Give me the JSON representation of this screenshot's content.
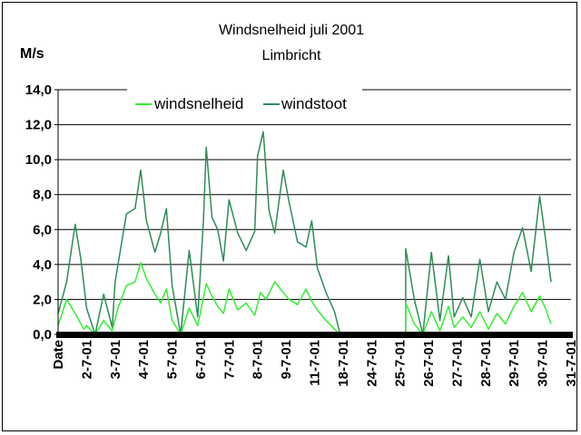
{
  "chart_data": {
    "type": "line",
    "title": "Windsnelheid juli 2001",
    "subtitle": "Limbricht",
    "ylabel": "M/s",
    "xlabel": "",
    "ylim": [
      0,
      14
    ],
    "yticks": [
      "0,0",
      "2,0",
      "4,0",
      "6,0",
      "8,0",
      "10,0",
      "12,0",
      "14,0"
    ],
    "ytick_values": [
      0,
      2,
      4,
      6,
      8,
      10,
      12,
      14
    ],
    "grid": true,
    "legend_position": "top-left",
    "categories": [
      "Date",
      "2-7-01",
      "3-7-01",
      "4-7-01",
      "5-7-01",
      "6-7-01",
      "7-7-01",
      "8-7-01",
      "9-7-01",
      "11-7-01",
      "18-7-01",
      "24-7-01",
      "25-7-01",
      "26-7-01",
      "27-7-01",
      "28-7-01",
      "29-7-01",
      "30-7-01",
      "31-7-01"
    ],
    "series": [
      {
        "name": "windsnelheid",
        "color": "#33ee33",
        "values": [
          [
            0.0,
            0.5
          ],
          [
            0.3,
            2.0
          ],
          [
            0.6,
            1.2
          ],
          [
            0.9,
            0.3
          ],
          [
            1.0,
            0.5
          ],
          [
            1.3,
            0.0
          ],
          [
            1.6,
            0.8
          ],
          [
            1.9,
            0.2
          ],
          [
            2.1,
            1.5
          ],
          [
            2.4,
            2.8
          ],
          [
            2.7,
            3.0
          ],
          [
            2.9,
            4.1
          ],
          [
            3.1,
            3.2
          ],
          [
            3.4,
            2.3
          ],
          [
            3.6,
            1.8
          ],
          [
            3.8,
            2.6
          ],
          [
            4.0,
            0.8
          ],
          [
            4.3,
            0.0
          ],
          [
            4.6,
            1.5
          ],
          [
            4.9,
            0.5
          ],
          [
            5.2,
            2.9
          ],
          [
            5.4,
            2.2
          ],
          [
            5.6,
            1.6
          ],
          [
            5.8,
            1.2
          ],
          [
            6.0,
            2.6
          ],
          [
            6.3,
            1.4
          ],
          [
            6.6,
            1.8
          ],
          [
            6.9,
            1.1
          ],
          [
            7.1,
            2.4
          ],
          [
            7.3,
            2.0
          ],
          [
            7.6,
            3.0
          ],
          [
            7.9,
            2.4
          ],
          [
            8.1,
            2.0
          ],
          [
            8.4,
            1.7
          ],
          [
            8.7,
            2.6
          ],
          [
            8.9,
            1.9
          ],
          [
            9.1,
            1.4
          ],
          [
            9.4,
            0.8
          ],
          [
            9.7,
            0.3
          ],
          [
            9.9,
            0.0
          ],
          [
            12.2,
            0.0
          ],
          [
            12.2,
            1.8
          ],
          [
            12.5,
            0.6
          ],
          [
            12.8,
            0.0
          ],
          [
            13.1,
            1.3
          ],
          [
            13.4,
            0.2
          ],
          [
            13.7,
            1.6
          ],
          [
            13.9,
            0.4
          ],
          [
            14.2,
            1.0
          ],
          [
            14.5,
            0.4
          ],
          [
            14.8,
            1.3
          ],
          [
            15.1,
            0.3
          ],
          [
            15.4,
            1.2
          ],
          [
            15.7,
            0.6
          ],
          [
            16.0,
            1.6
          ],
          [
            16.3,
            2.4
          ],
          [
            16.6,
            1.3
          ],
          [
            16.9,
            2.2
          ],
          [
            17.1,
            1.5
          ],
          [
            17.3,
            0.6
          ]
        ]
      },
      {
        "name": "windstoot",
        "color": "#2e8b57",
        "values": [
          [
            0.0,
            1.2
          ],
          [
            0.3,
            3.0
          ],
          [
            0.6,
            6.3
          ],
          [
            0.8,
            4.3
          ],
          [
            1.0,
            1.5
          ],
          [
            1.3,
            0.0
          ],
          [
            1.6,
            2.3
          ],
          [
            1.9,
            0.4
          ],
          [
            2.0,
            3.0
          ],
          [
            2.4,
            6.9
          ],
          [
            2.7,
            7.2
          ],
          [
            2.9,
            9.4
          ],
          [
            3.1,
            6.5
          ],
          [
            3.4,
            4.7
          ],
          [
            3.6,
            5.8
          ],
          [
            3.8,
            7.2
          ],
          [
            4.0,
            2.8
          ],
          [
            4.3,
            0.0
          ],
          [
            4.6,
            4.8
          ],
          [
            4.9,
            1.0
          ],
          [
            5.1,
            6.5
          ],
          [
            5.2,
            10.7
          ],
          [
            5.4,
            6.7
          ],
          [
            5.6,
            6.0
          ],
          [
            5.8,
            4.2
          ],
          [
            6.0,
            7.7
          ],
          [
            6.3,
            5.8
          ],
          [
            6.6,
            4.8
          ],
          [
            6.9,
            5.9
          ],
          [
            7.0,
            10.2
          ],
          [
            7.2,
            11.6
          ],
          [
            7.4,
            7.1
          ],
          [
            7.6,
            5.8
          ],
          [
            7.9,
            9.4
          ],
          [
            8.1,
            7.6
          ],
          [
            8.4,
            5.3
          ],
          [
            8.7,
            5.0
          ],
          [
            8.9,
            6.5
          ],
          [
            9.1,
            3.8
          ],
          [
            9.4,
            2.4
          ],
          [
            9.7,
            1.3
          ],
          [
            9.9,
            0.0
          ],
          [
            12.2,
            0.0
          ],
          [
            12.2,
            4.9
          ],
          [
            12.5,
            2.0
          ],
          [
            12.8,
            0.0
          ],
          [
            13.1,
            4.7
          ],
          [
            13.4,
            0.8
          ],
          [
            13.7,
            4.5
          ],
          [
            13.9,
            1.0
          ],
          [
            14.2,
            2.1
          ],
          [
            14.5,
            1.0
          ],
          [
            14.8,
            4.3
          ],
          [
            15.1,
            1.3
          ],
          [
            15.4,
            3.0
          ],
          [
            15.7,
            2.0
          ],
          [
            16.0,
            4.7
          ],
          [
            16.3,
            6.1
          ],
          [
            16.6,
            3.6
          ],
          [
            16.9,
            7.9
          ],
          [
            17.1,
            5.5
          ],
          [
            17.3,
            3.0
          ]
        ]
      }
    ]
  }
}
